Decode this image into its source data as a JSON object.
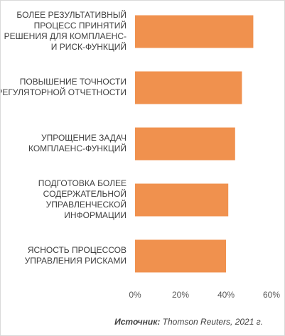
{
  "chart_data": {
    "type": "bar",
    "orientation": "horizontal",
    "categories": [
      [
        "БОЛЕЕ РЕЗУЛЬТАТИВНЫЙ",
        "ПРОЦЕСС ПРИНЯТИЙ",
        "РЕШЕНИЯ ДЛЯ КОМПЛАЕНС-",
        "И РИСК-ФУНКЦИЙ"
      ],
      [
        "ПОВЫШЕНИЕ ТОЧНОСТИ",
        "РЕГУЛЯТОРНОЙ ОТЧЕТНОСТИ"
      ],
      [
        "УПРОЩЕНИЕ ЗАДАЧ",
        "КОМПЛАЕНС-ФУНКЦИЙ"
      ],
      [
        "ПОДГОТОВКА БОЛЕЕ",
        "СОДЕРЖАТЕЛЬНОЙ",
        "УПРАВЛЕНЧЕСКОЙ",
        "ИНФОРМАЦИИ"
      ],
      [
        "ЯСНОСТЬ ПРОЦЕССОВ",
        "УПРАВЛЕНИЯ РИСКАМИ"
      ]
    ],
    "values": [
      52,
      47,
      44,
      41,
      40
    ],
    "xlim": [
      0,
      60
    ],
    "xticks": [
      "0%",
      "20%",
      "40%",
      "60%"
    ],
    "bar_color": "#F0914E",
    "grid": false,
    "legend": "none"
  },
  "source": {
    "label": "Источник:",
    "value": "Thomson Reuters, 2021 г."
  }
}
